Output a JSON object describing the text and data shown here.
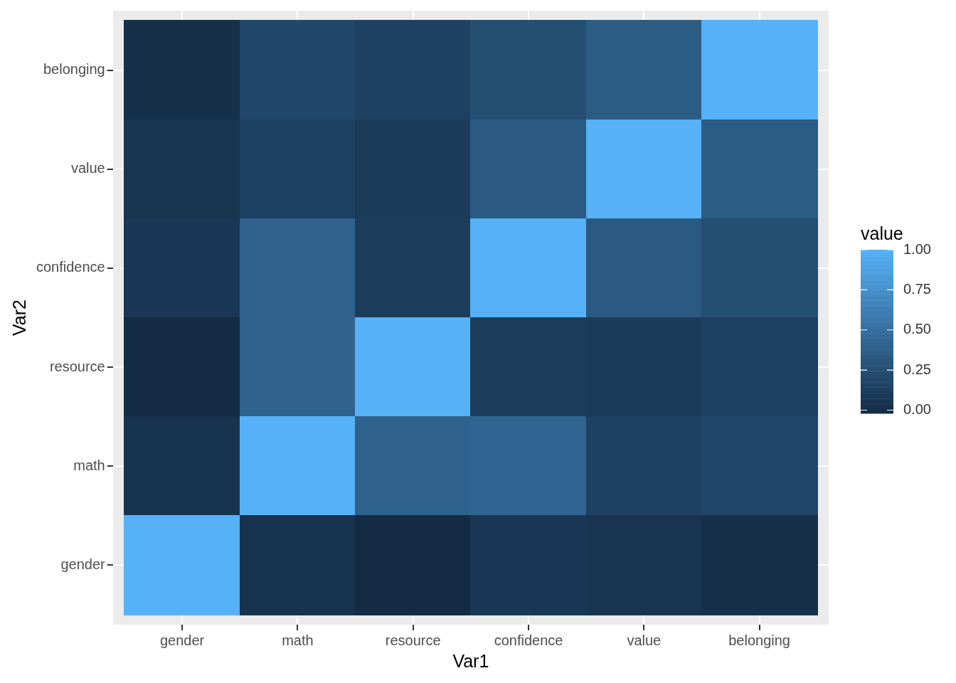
{
  "chart_data": {
    "type": "heatmap",
    "xlabel": "Var1",
    "ylabel": "Var2",
    "clabel": "value",
    "categories": [
      "gender",
      "math",
      "resource",
      "confidence",
      "value",
      "belonging"
    ],
    "y_categories": [
      "belonging",
      "value",
      "confidence",
      "resource",
      "math",
      "gender"
    ],
    "cells": [
      [
        0.02,
        0.2,
        0.15,
        0.25,
        0.35,
        1
      ],
      [
        0.05,
        0.15,
        0.1,
        0.33,
        1,
        0.35
      ],
      [
        0.08,
        0.4,
        0.12,
        1,
        0.33,
        0.25
      ],
      [
        -0.02,
        0.4,
        1,
        0.12,
        0.1,
        0.15
      ],
      [
        0.04,
        1,
        0.4,
        0.42,
        0.15,
        0.2
      ],
      [
        1,
        0.04,
        -0.02,
        0.08,
        0.05,
        0.02
      ]
    ],
    "grid": true,
    "clim": [
      -0.02,
      1
    ],
    "cticks": [
      {
        "value": 0,
        "label": "0.00"
      },
      {
        "value": 0.25,
        "label": "0.25"
      },
      {
        "value": 0.5,
        "label": "0.50"
      },
      {
        "value": 0.75,
        "label": "0.75"
      },
      {
        "value": 1,
        "label": "1.00"
      }
    ]
  }
}
